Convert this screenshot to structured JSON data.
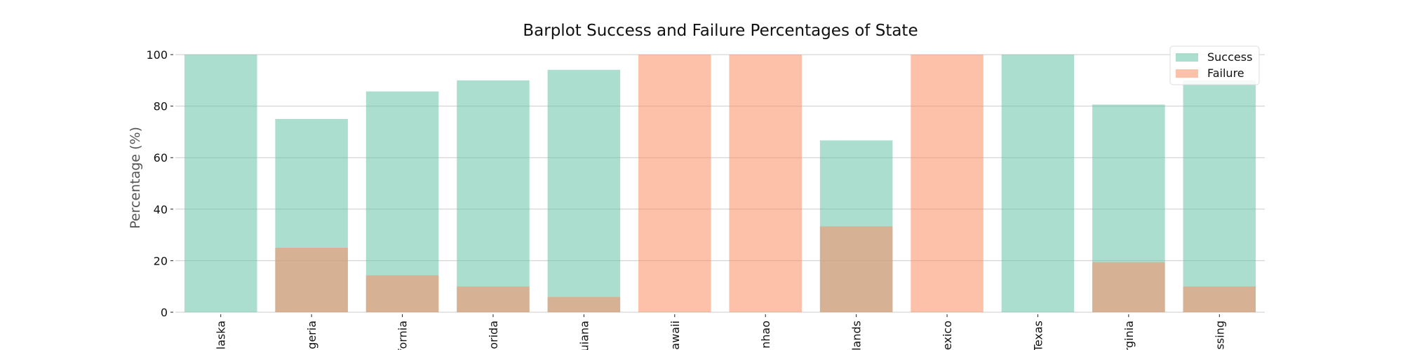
{
  "chart_data": {
    "type": "bar",
    "title": "Barplot Success and Failure Percentages of State",
    "xlabel": "",
    "ylabel": "Percentage (%)",
    "ylim": [
      0,
      100
    ],
    "yticks": [
      0,
      20,
      40,
      60,
      80,
      100
    ],
    "grid": true,
    "legend_position": "top-right",
    "categories": [
      "laska",
      "geria",
      "fornia",
      "lorida",
      "uiana",
      "awaii",
      "nhao",
      "lands",
      "exico",
      "Texas",
      "rginia",
      "ssing"
    ],
    "series": [
      {
        "name": "Success",
        "color": "#66c2a5",
        "values": [
          100,
          75,
          85.7,
          90,
          94.1,
          0,
          0,
          66.7,
          0,
          100,
          80.6,
          90
        ]
      },
      {
        "name": "Failure",
        "color": "#fc8d62",
        "values": [
          0,
          25,
          14.3,
          10,
          5.9,
          100,
          100,
          33.3,
          100,
          0,
          19.4,
          10
        ]
      }
    ]
  }
}
